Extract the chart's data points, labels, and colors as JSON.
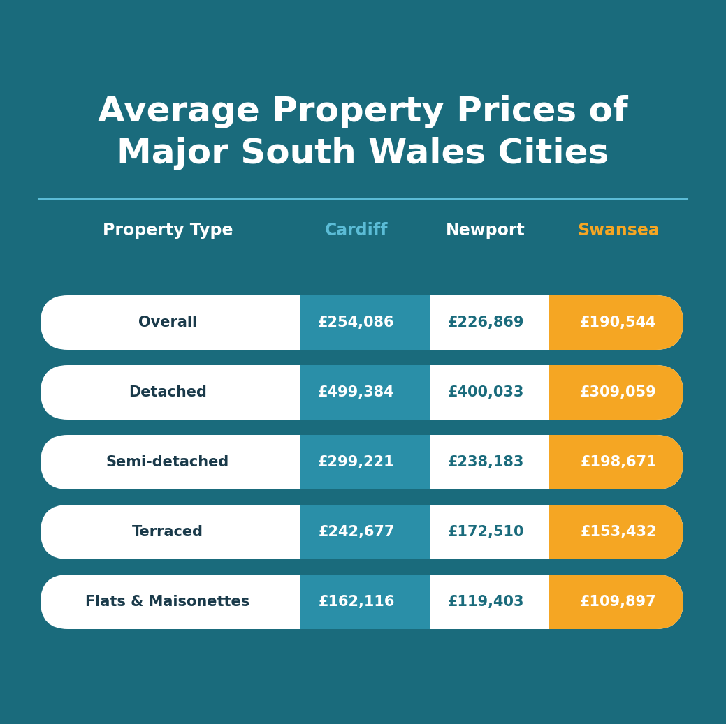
{
  "title_line1": "Average Property Prices of",
  "title_line2": "Major South Wales Cities",
  "bg_color": "#1a6b7c",
  "header_col1": "Property Type",
  "header_col2": "Cardiff",
  "header_col3": "Newport",
  "header_col4": "Swansea",
  "header_col2_color": "#5bbcd6",
  "header_col3_color": "#ffffff",
  "header_col4_color": "#f5a623",
  "rows": [
    {
      "label": "Overall",
      "cardiff": "£254,086",
      "newport": "£226,869",
      "swansea": "£190,544"
    },
    {
      "label": "Detached",
      "cardiff": "£499,384",
      "newport": "£400,033",
      "swansea": "£309,059"
    },
    {
      "label": "Semi-detached",
      "cardiff": "£299,221",
      "newport": "£238,183",
      "swansea": "£198,671"
    },
    {
      "label": "Terraced",
      "cardiff": "£242,677",
      "newport": "£172,510",
      "swansea": "£153,432"
    },
    {
      "label": "Flats & Maisonettes",
      "cardiff": "£162,116",
      "newport": "£119,403",
      "swansea": "£109,897"
    }
  ],
  "row_bg": "#ffffff",
  "cardiff_color": "#2a8fa8",
  "newport_color": "#ffffff",
  "swansea_color": "#f5a623",
  "cardiff_text_color": "#ffffff",
  "newport_text_color": "#1a6b7c",
  "swansea_text_color": "#ffffff",
  "label_text_color": "#1a3a4a",
  "divider_color": "#5bbcd6",
  "title_color": "#ffffff"
}
